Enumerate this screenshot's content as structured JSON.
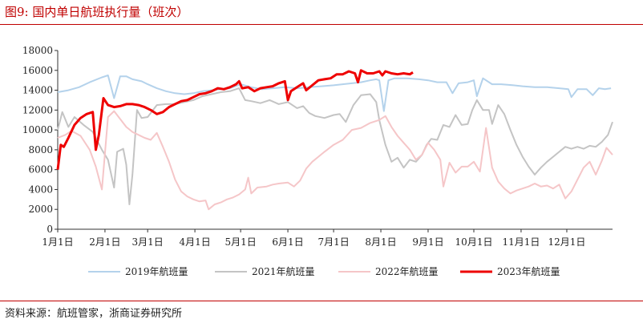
{
  "figure": {
    "title": "图9:   国内单日航班执行量（班次）",
    "source": "资料来源：航班管家，浙商证券研究所"
  },
  "chart_data": {
    "type": "line",
    "title": "",
    "xlabel": "",
    "ylabel": "",
    "ylim": [
      0,
      18000
    ],
    "yticks": [
      "0",
      "2000",
      "4000",
      "6000",
      "8000",
      "10000",
      "12000",
      "14000",
      "16000",
      "18000"
    ],
    "xlim": [
      1,
      365
    ],
    "xticks": [
      {
        "label": "1月1日",
        "day": 1
      },
      {
        "label": "2月1日",
        "day": 32
      },
      {
        "label": "3月1日",
        "day": 60
      },
      {
        "label": "4月1日",
        "day": 91
      },
      {
        "label": "5月1日",
        "day": 121
      },
      {
        "label": "6月1日",
        "day": 152
      },
      {
        "label": "7月1日",
        "day": 182
      },
      {
        "label": "8月1日",
        "day": 213
      },
      {
        "label": "9月1日",
        "day": 244
      },
      {
        "label": "10月1日",
        "day": 274
      },
      {
        "label": "11月1日",
        "day": 305
      },
      {
        "label": "12月1日",
        "day": 335
      }
    ],
    "grid": false,
    "legend_position": "bottom",
    "series": [
      {
        "name": "2019年航班量",
        "color": "#b4d2eb",
        "width": 2,
        "points": [
          [
            1,
            13800
          ],
          [
            8,
            14000
          ],
          [
            15,
            14300
          ],
          [
            22,
            14800
          ],
          [
            30,
            15300
          ],
          [
            34,
            15500
          ],
          [
            38,
            13200
          ],
          [
            42,
            15400
          ],
          [
            46,
            15400
          ],
          [
            50,
            15100
          ],
          [
            56,
            14900
          ],
          [
            60,
            14600
          ],
          [
            66,
            14200
          ],
          [
            72,
            13900
          ],
          [
            78,
            13700
          ],
          [
            84,
            13600
          ],
          [
            90,
            13700
          ],
          [
            96,
            13900
          ],
          [
            102,
            14000
          ],
          [
            108,
            14100
          ],
          [
            114,
            14200
          ],
          [
            121,
            14600
          ],
          [
            128,
            14300
          ],
          [
            135,
            14100
          ],
          [
            142,
            14200
          ],
          [
            150,
            14300
          ],
          [
            158,
            14200
          ],
          [
            166,
            14300
          ],
          [
            174,
            14400
          ],
          [
            182,
            14500
          ],
          [
            188,
            14600
          ],
          [
            194,
            14700
          ],
          [
            200,
            14800
          ],
          [
            206,
            15000
          ],
          [
            210,
            15100
          ],
          [
            212,
            15000
          ],
          [
            215,
            11900
          ],
          [
            218,
            15000
          ],
          [
            222,
            15200
          ],
          [
            230,
            15200
          ],
          [
            238,
            15100
          ],
          [
            244,
            15000
          ],
          [
            250,
            14800
          ],
          [
            256,
            14800
          ],
          [
            260,
            13700
          ],
          [
            264,
            14700
          ],
          [
            270,
            14800
          ],
          [
            274,
            15000
          ],
          [
            276,
            13400
          ],
          [
            280,
            15200
          ],
          [
            286,
            14600
          ],
          [
            292,
            14600
          ],
          [
            300,
            14500
          ],
          [
            306,
            14400
          ],
          [
            314,
            14300
          ],
          [
            322,
            14300
          ],
          [
            330,
            14200
          ],
          [
            336,
            14100
          ],
          [
            338,
            13300
          ],
          [
            342,
            14100
          ],
          [
            348,
            14100
          ],
          [
            352,
            13500
          ],
          [
            356,
            14200
          ],
          [
            360,
            14100
          ],
          [
            364,
            14200
          ]
        ]
      },
      {
        "name": "2021年航班量",
        "color": "#c4c4c4",
        "width": 2,
        "points": [
          [
            1,
            10000
          ],
          [
            4,
            11800
          ],
          [
            8,
            10300
          ],
          [
            12,
            11300
          ],
          [
            18,
            10500
          ],
          [
            24,
            9800
          ],
          [
            30,
            8000
          ],
          [
            34,
            7000
          ],
          [
            38,
            4200
          ],
          [
            40,
            7800
          ],
          [
            44,
            8100
          ],
          [
            46,
            6500
          ],
          [
            48,
            2500
          ],
          [
            50,
            5500
          ],
          [
            53,
            12000
          ],
          [
            56,
            11200
          ],
          [
            60,
            11300
          ],
          [
            66,
            12500
          ],
          [
            72,
            12600
          ],
          [
            78,
            12600
          ],
          [
            84,
            12800
          ],
          [
            90,
            13000
          ],
          [
            96,
            13400
          ],
          [
            102,
            13600
          ],
          [
            108,
            13800
          ],
          [
            114,
            13900
          ],
          [
            120,
            14200
          ],
          [
            124,
            13000
          ],
          [
            128,
            12900
          ],
          [
            134,
            12700
          ],
          [
            140,
            13000
          ],
          [
            146,
            12600
          ],
          [
            152,
            12800
          ],
          [
            158,
            12200
          ],
          [
            162,
            12400
          ],
          [
            166,
            11700
          ],
          [
            170,
            11400
          ],
          [
            176,
            11200
          ],
          [
            182,
            11500
          ],
          [
            186,
            11600
          ],
          [
            190,
            10800
          ],
          [
            195,
            12500
          ],
          [
            200,
            13500
          ],
          [
            206,
            13600
          ],
          [
            210,
            12800
          ],
          [
            212,
            11000
          ],
          [
            216,
            8500
          ],
          [
            220,
            6800
          ],
          [
            224,
            7200
          ],
          [
            228,
            6200
          ],
          [
            232,
            7000
          ],
          [
            236,
            6800
          ],
          [
            240,
            7500
          ],
          [
            243,
            8500
          ],
          [
            246,
            9100
          ],
          [
            250,
            9000
          ],
          [
            254,
            10500
          ],
          [
            258,
            10300
          ],
          [
            262,
            11500
          ],
          [
            266,
            10500
          ],
          [
            270,
            10600
          ],
          [
            273,
            12000
          ],
          [
            276,
            13000
          ],
          [
            280,
            12000
          ],
          [
            284,
            12000
          ],
          [
            286,
            10600
          ],
          [
            290,
            12500
          ],
          [
            294,
            11600
          ],
          [
            298,
            10000
          ],
          [
            302,
            8500
          ],
          [
            306,
            7300
          ],
          [
            310,
            6300
          ],
          [
            314,
            5500
          ],
          [
            318,
            6200
          ],
          [
            322,
            6800
          ],
          [
            326,
            7300
          ],
          [
            330,
            7800
          ],
          [
            334,
            8300
          ],
          [
            338,
            8100
          ],
          [
            342,
            8300
          ],
          [
            346,
            8100
          ],
          [
            350,
            8400
          ],
          [
            354,
            8300
          ],
          [
            358,
            8800
          ],
          [
            362,
            9500
          ],
          [
            365,
            10800
          ]
        ]
      },
      {
        "name": "2022年航班量",
        "color": "#f5c6c8",
        "width": 2,
        "points": [
          [
            1,
            9200
          ],
          [
            6,
            9500
          ],
          [
            10,
            9900
          ],
          [
            16,
            9400
          ],
          [
            22,
            8000
          ],
          [
            26,
            6300
          ],
          [
            30,
            4000
          ],
          [
            34,
            11300
          ],
          [
            38,
            11900
          ],
          [
            42,
            11100
          ],
          [
            46,
            10300
          ],
          [
            50,
            9800
          ],
          [
            54,
            9500
          ],
          [
            58,
            9200
          ],
          [
            62,
            9000
          ],
          [
            66,
            9700
          ],
          [
            70,
            8300
          ],
          [
            74,
            6800
          ],
          [
            78,
            5000
          ],
          [
            82,
            3800
          ],
          [
            86,
            3300
          ],
          [
            90,
            3000
          ],
          [
            94,
            2800
          ],
          [
            98,
            2900
          ],
          [
            100,
            2000
          ],
          [
            104,
            2500
          ],
          [
            108,
            2700
          ],
          [
            112,
            3000
          ],
          [
            116,
            3200
          ],
          [
            120,
            3500
          ],
          [
            124,
            4000
          ],
          [
            126,
            5200
          ],
          [
            128,
            3600
          ],
          [
            132,
            4200
          ],
          [
            138,
            4300
          ],
          [
            142,
            4500
          ],
          [
            146,
            4600
          ],
          [
            152,
            4700
          ],
          [
            156,
            4300
          ],
          [
            160,
            4900
          ],
          [
            164,
            6100
          ],
          [
            168,
            6800
          ],
          [
            172,
            7300
          ],
          [
            176,
            7800
          ],
          [
            182,
            8500
          ],
          [
            188,
            9000
          ],
          [
            194,
            10000
          ],
          [
            200,
            10200
          ],
          [
            206,
            10700
          ],
          [
            212,
            11000
          ],
          [
            216,
            11400
          ],
          [
            220,
            10300
          ],
          [
            224,
            9400
          ],
          [
            228,
            8700
          ],
          [
            232,
            8000
          ],
          [
            236,
            7000
          ],
          [
            240,
            7500
          ],
          [
            244,
            8700
          ],
          [
            248,
            8000
          ],
          [
            252,
            7000
          ],
          [
            254,
            4300
          ],
          [
            258,
            6700
          ],
          [
            262,
            5700
          ],
          [
            266,
            6300
          ],
          [
            270,
            6300
          ],
          [
            274,
            6800
          ],
          [
            278,
            5800
          ],
          [
            282,
            10200
          ],
          [
            286,
            6200
          ],
          [
            290,
            4800
          ],
          [
            294,
            4100
          ],
          [
            298,
            3600
          ],
          [
            302,
            3900
          ],
          [
            306,
            4100
          ],
          [
            310,
            4300
          ],
          [
            314,
            4600
          ],
          [
            318,
            4300
          ],
          [
            322,
            4400
          ],
          [
            326,
            4100
          ],
          [
            330,
            4500
          ],
          [
            334,
            3100
          ],
          [
            338,
            3800
          ],
          [
            342,
            5000
          ],
          [
            346,
            6200
          ],
          [
            350,
            6800
          ],
          [
            354,
            5500
          ],
          [
            358,
            6900
          ],
          [
            361,
            8200
          ],
          [
            365,
            7500
          ]
        ]
      },
      {
        "name": "2023年航班量",
        "color": "#ee0000",
        "width": 3,
        "points": [
          [
            1,
            6000
          ],
          [
            3,
            8500
          ],
          [
            5,
            8300
          ],
          [
            8,
            9200
          ],
          [
            12,
            10500
          ],
          [
            16,
            11200
          ],
          [
            20,
            11600
          ],
          [
            24,
            11800
          ],
          [
            26,
            8000
          ],
          [
            28,
            9500
          ],
          [
            31,
            13200
          ],
          [
            34,
            12500
          ],
          [
            38,
            12300
          ],
          [
            42,
            12400
          ],
          [
            46,
            12600
          ],
          [
            50,
            12600
          ],
          [
            54,
            12500
          ],
          [
            58,
            12300
          ],
          [
            62,
            12000
          ],
          [
            66,
            11600
          ],
          [
            70,
            11800
          ],
          [
            74,
            12300
          ],
          [
            78,
            12600
          ],
          [
            82,
            12900
          ],
          [
            86,
            13000
          ],
          [
            90,
            13300
          ],
          [
            94,
            13600
          ],
          [
            98,
            13700
          ],
          [
            102,
            13900
          ],
          [
            106,
            14200
          ],
          [
            110,
            14100
          ],
          [
            114,
            14300
          ],
          [
            118,
            14600
          ],
          [
            120,
            14900
          ],
          [
            122,
            14200
          ],
          [
            126,
            14300
          ],
          [
            130,
            13900
          ],
          [
            134,
            14200
          ],
          [
            138,
            14300
          ],
          [
            142,
            14400
          ],
          [
            146,
            14700
          ],
          [
            150,
            14900
          ],
          [
            152,
            13000
          ],
          [
            154,
            13900
          ],
          [
            158,
            14300
          ],
          [
            162,
            14700
          ],
          [
            164,
            14000
          ],
          [
            168,
            14500
          ],
          [
            172,
            15000
          ],
          [
            176,
            15100
          ],
          [
            180,
            15200
          ],
          [
            184,
            15600
          ],
          [
            188,
            15600
          ],
          [
            192,
            15900
          ],
          [
            196,
            15700
          ],
          [
            198,
            14800
          ],
          [
            200,
            16000
          ],
          [
            204,
            15700
          ],
          [
            208,
            15700
          ],
          [
            212,
            15900
          ],
          [
            214,
            15500
          ],
          [
            216,
            15900
          ],
          [
            220,
            15700
          ],
          [
            224,
            15600
          ],
          [
            228,
            15700
          ],
          [
            232,
            15600
          ],
          [
            234,
            15800
          ]
        ]
      }
    ]
  }
}
